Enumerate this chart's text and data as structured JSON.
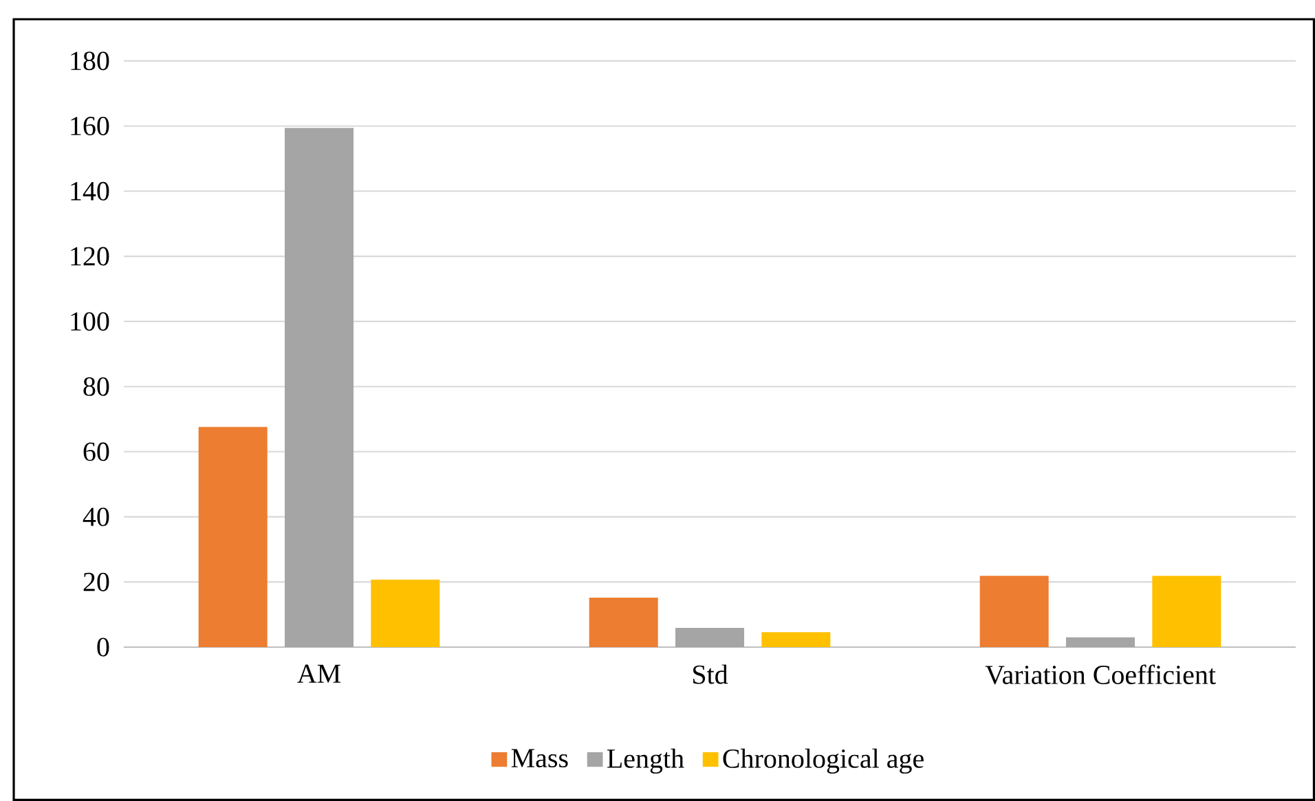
{
  "chart_data": {
    "type": "bar",
    "categories": [
      "AM",
      "Std",
      "Variation Coefficient"
    ],
    "series": [
      {
        "name": "Mass",
        "color": "#ed7d31",
        "values": [
          67.6,
          15.2,
          21.9
        ]
      },
      {
        "name": "Length",
        "color": "#a5a5a5",
        "values": [
          159.4,
          5.9,
          3
        ]
      },
      {
        "name": "Chronological age",
        "color": "#ffc000",
        "values": [
          20.7,
          4.6,
          21.9
        ]
      }
    ],
    "ylim": [
      0,
      180
    ],
    "yticks": [
      0,
      20,
      40,
      60,
      80,
      100,
      120,
      140,
      160,
      180
    ],
    "grid": "y",
    "legend": "bottom"
  }
}
